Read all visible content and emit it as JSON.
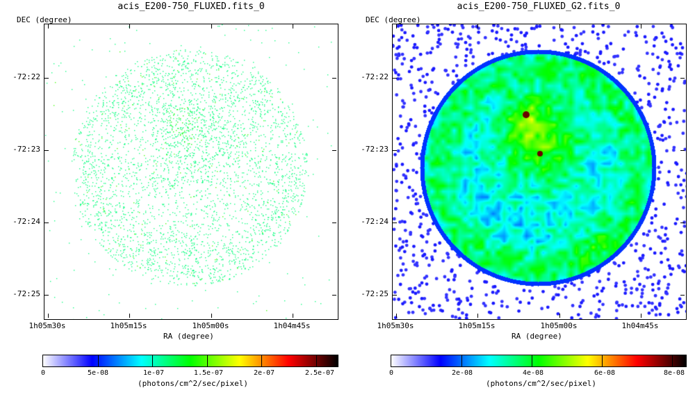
{
  "panels": [
    {
      "title": "acis_E200-750_FLUXED.fits_0",
      "ylabel": "DEC (degree)",
      "xlabel": "RA (degree)",
      "yticks": [
        "-72:22",
        "-72:23",
        "-72:24",
        "-72:25"
      ],
      "xticks": [
        "1h05m30s",
        "1h05m15s",
        "1h05m00s",
        "1h04m45s"
      ],
      "colorbar_ticks": [
        "0",
        "5e-08",
        "1e-07",
        "1.5e-07",
        "2e-07",
        "2.5e-07"
      ],
      "colorbar_label": "(photons/cm^2/sec/pixel)"
    },
    {
      "title": "acis_E200-750_FLUXED_G2.fits_0",
      "ylabel": "DEC (degree)",
      "xlabel": "RA (degree)",
      "yticks": [
        "-72:22",
        "-72:23",
        "-72:24",
        "-72:25"
      ],
      "xticks": [
        "1h05m30s",
        "1h05m15s",
        "1h05m00s",
        "1h04m45s"
      ],
      "colorbar_ticks": [
        "0",
        "2e-08",
        "4e-08",
        "6e-08",
        "8e-08"
      ],
      "colorbar_label": "(photons/cm^2/sec/pixel)"
    }
  ],
  "colormap": [
    "#ffffff",
    "#0000ff",
    "#00ffff",
    "#00ff00",
    "#ffff00",
    "#ff0000",
    "#000000"
  ]
}
